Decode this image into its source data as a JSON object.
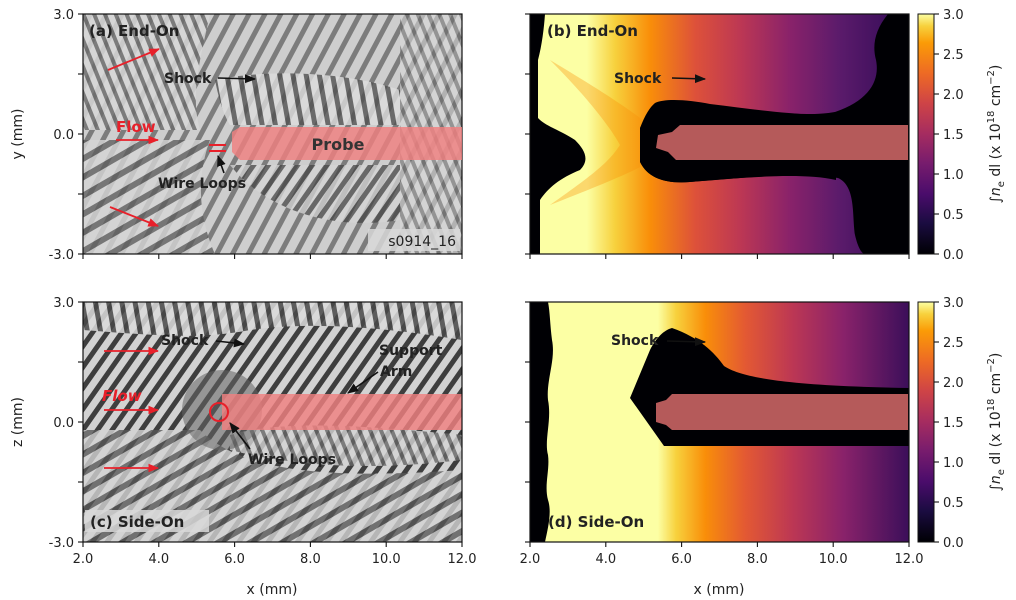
{
  "panels": {
    "a": {
      "label": "(a) End-On",
      "shock": "Shock",
      "flow": "Flow",
      "probe": "Probe",
      "wire": "Wire Loops",
      "shot_id": "s0914_16"
    },
    "b": {
      "label": "(b) End-On",
      "shock": "Shock"
    },
    "c": {
      "label": "(c) Side-On",
      "shock": "Shock",
      "flow": "Flow",
      "support_line1": "Support",
      "support_line2": "Arm",
      "wire": "Wire Loops"
    },
    "d": {
      "label": "(d) Side-On",
      "shock": "Shock"
    }
  },
  "axes": {
    "top_ylabel": "y (mm)",
    "bottom_ylabel": "z (mm)",
    "xlabel": "x (mm)",
    "y_ticks": [
      "3.0",
      "0.0",
      "-3.0"
    ],
    "x_ticks": [
      "2.0",
      "4.0",
      "6.0",
      "8.0",
      "10.0",
      "12.0"
    ]
  },
  "colorbar": {
    "label_prefix": "∫",
    "label_n": "n",
    "label_sub": "e",
    "label_mid": " dl (x 10",
    "label_exp": "18",
    "label_unit": " cm",
    "label_uexp": "−2",
    "label_end": ")",
    "ticks": [
      "3.0",
      "2.5",
      "2.0",
      "1.5",
      "1.0",
      "0.5",
      "0.0"
    ],
    "range": [
      0,
      3
    ]
  },
  "colors": {
    "annotation_red": "#e8202a",
    "probe_fill": "#f08080",
    "probe_on_map": "#b55a5a",
    "colormap": "inferno"
  }
}
